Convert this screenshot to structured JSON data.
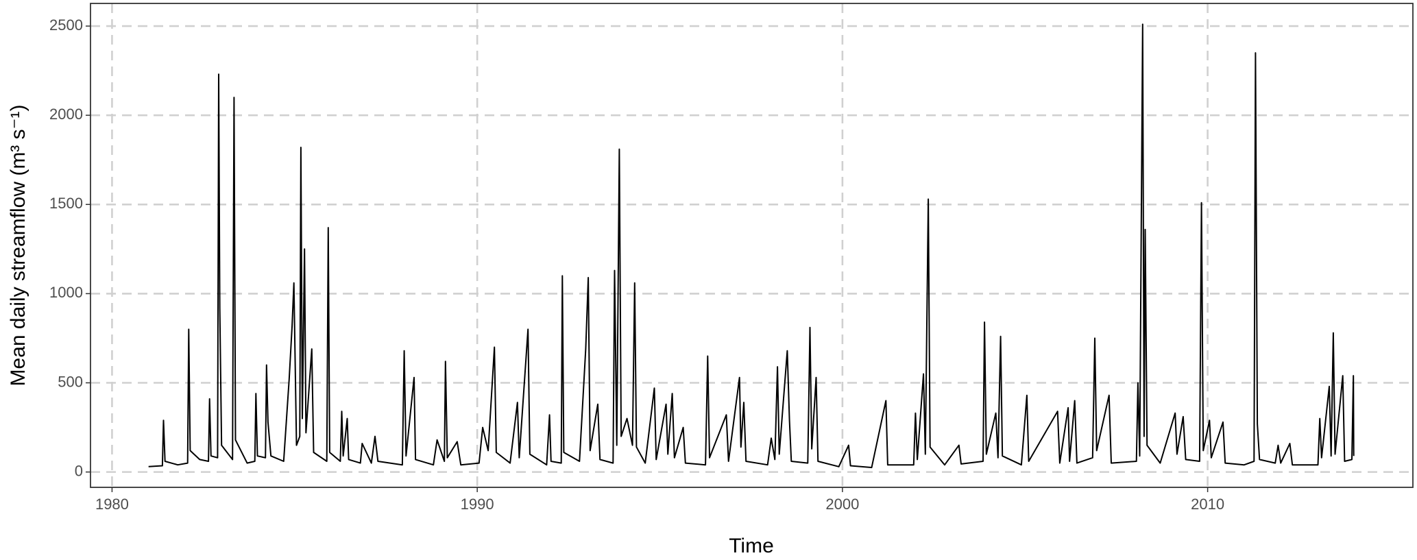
{
  "chart_data": {
    "type": "line",
    "xlabel": "Time",
    "ylabel": "Mean daily streamflow (m³ s⁻¹)",
    "x": [
      1981.0,
      1981.38,
      1981.41,
      1981.45,
      1981.8,
      1982.07,
      1982.1,
      1982.14,
      1982.4,
      1982.64,
      1982.67,
      1982.71,
      1982.89,
      1982.92,
      1982.95,
      1983.0,
      1983.3,
      1983.34,
      1983.38,
      1983.7,
      1983.91,
      1983.94,
      1983.98,
      1984.2,
      1984.23,
      1984.27,
      1984.35,
      1984.7,
      1984.85,
      1984.93,
      1984.98,
      1985.05,
      1985.14,
      1985.17,
      1985.21,
      1985.27,
      1985.31,
      1985.47,
      1985.52,
      1985.88,
      1985.92,
      1985.96,
      1986.25,
      1986.29,
      1986.33,
      1986.44,
      1986.48,
      1986.8,
      1986.85,
      1987.1,
      1987.2,
      1987.28,
      1987.95,
      1988.0,
      1988.05,
      1988.27,
      1988.31,
      1988.8,
      1988.9,
      1989.1,
      1989.13,
      1989.18,
      1989.45,
      1989.55,
      1990.05,
      1990.15,
      1990.3,
      1990.47,
      1990.52,
      1990.9,
      1991.1,
      1991.15,
      1991.39,
      1991.44,
      1991.9,
      1991.98,
      1992.02,
      1992.3,
      1992.33,
      1992.37,
      1992.8,
      1992.97,
      1993.04,
      1993.09,
      1993.3,
      1993.36,
      1993.72,
      1993.76,
      1993.82,
      1993.89,
      1993.94,
      1994.1,
      1994.25,
      1994.31,
      1994.36,
      1994.6,
      1994.85,
      1994.9,
      1995.17,
      1995.22,
      1995.34,
      1995.4,
      1995.64,
      1995.7,
      1996.25,
      1996.31,
      1996.36,
      1996.82,
      1996.88,
      1997.18,
      1997.22,
      1997.3,
      1997.36,
      1997.95,
      1998.05,
      1998.15,
      1998.22,
      1998.27,
      1998.49,
      1998.55,
      1998.6,
      1999.05,
      1999.11,
      1999.16,
      1999.28,
      1999.33,
      1999.9,
      2000.17,
      2000.22,
      2000.8,
      2001.19,
      2001.24,
      2001.95,
      2002.0,
      2002.05,
      2002.22,
      2002.27,
      2002.35,
      2002.4,
      2002.8,
      2003.19,
      2003.25,
      2003.85,
      2003.89,
      2003.94,
      2004.2,
      2004.26,
      2004.33,
      2004.38,
      2004.9,
      2005.05,
      2005.1,
      2005.89,
      2005.95,
      2006.18,
      2006.22,
      2006.36,
      2006.42,
      2006.85,
      2006.91,
      2006.96,
      2007.3,
      2007.36,
      2008.05,
      2008.09,
      2008.14,
      2008.22,
      2008.26,
      2008.29,
      2008.34,
      2008.7,
      2009.11,
      2009.16,
      2009.33,
      2009.4,
      2009.78,
      2009.83,
      2009.88,
      2010.05,
      2010.1,
      2010.42,
      2010.48,
      2011.0,
      2011.27,
      2011.31,
      2011.36,
      2011.42,
      2011.85,
      2011.93,
      2012.0,
      2012.25,
      2012.32,
      2013.02,
      2013.07,
      2013.12,
      2013.33,
      2013.38,
      2013.44,
      2013.49,
      2013.7,
      2013.75,
      2013.95,
      2013.99,
      2014.0
    ],
    "series": [
      {
        "color": "#000000",
        "values": [
          30,
          35,
          290,
          60,
          40,
          50,
          800,
          120,
          70,
          60,
          410,
          90,
          80,
          2230,
          920,
          150,
          70,
          2100,
          180,
          50,
          60,
          440,
          90,
          80,
          600,
          280,
          90,
          60,
          520,
          820,
          1060,
          150,
          200,
          1820,
          300,
          1250,
          220,
          690,
          110,
          60,
          1370,
          110,
          60,
          340,
          90,
          300,
          70,
          50,
          160,
          50,
          200,
          60,
          40,
          680,
          90,
          530,
          70,
          40,
          180,
          60,
          620,
          80,
          170,
          40,
          50,
          250,
          120,
          700,
          110,
          50,
          390,
          80,
          800,
          100,
          40,
          320,
          60,
          50,
          1100,
          110,
          60,
          690,
          1090,
          120,
          380,
          70,
          50,
          1130,
          150,
          1810,
          200,
          300,
          150,
          1060,
          140,
          50,
          470,
          70,
          380,
          100,
          440,
          80,
          250,
          50,
          40,
          650,
          80,
          320,
          60,
          530,
          140,
          390,
          60,
          40,
          190,
          70,
          590,
          100,
          680,
          290,
          60,
          50,
          810,
          130,
          530,
          60,
          30,
          150,
          35,
          25,
          400,
          40,
          40,
          330,
          70,
          550,
          100,
          1530,
          140,
          40,
          150,
          45,
          60,
          840,
          100,
          330,
          80,
          760,
          90,
          40,
          430,
          60,
          340,
          50,
          360,
          60,
          400,
          50,
          80,
          750,
          120,
          430,
          50,
          60,
          500,
          90,
          2510,
          200,
          1360,
          150,
          50,
          330,
          100,
          310,
          70,
          60,
          1510,
          120,
          290,
          80,
          280,
          50,
          40,
          60,
          2350,
          270,
          70,
          50,
          150,
          50,
          160,
          40,
          40,
          300,
          80,
          480,
          90,
          780,
          100,
          540,
          60,
          70,
          540,
          90
        ]
      }
    ],
    "xlim": [
      1979.41,
      2015.62
    ],
    "ylim": [
      -86,
      2627
    ],
    "xticks": [
      1980,
      1990,
      2000,
      2010
    ],
    "yticks": [
      0,
      500,
      1000,
      1500,
      2000,
      2500
    ],
    "grid": true
  }
}
